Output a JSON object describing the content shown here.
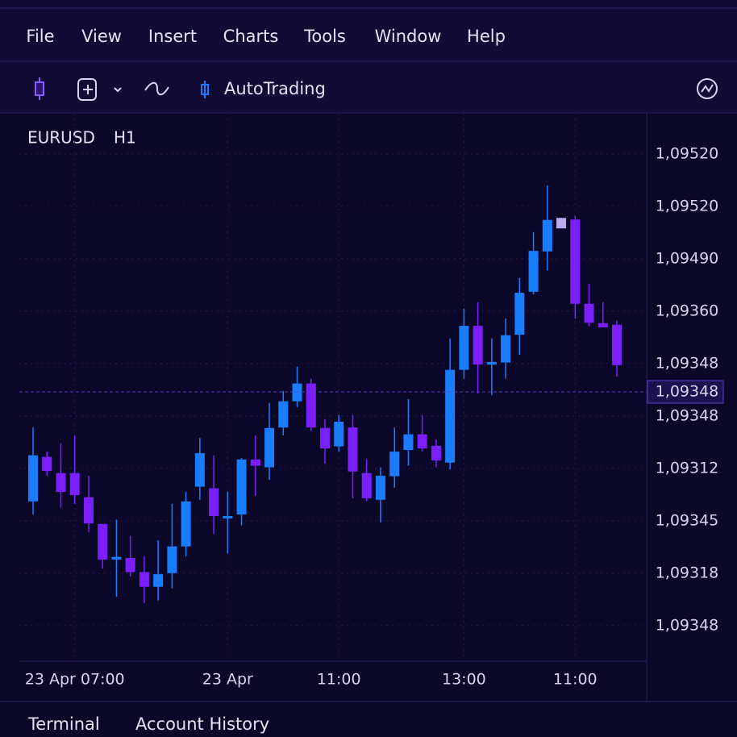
{
  "menu": [
    "File",
    "View",
    "Insert",
    "Charts",
    "Tools",
    "Window",
    "Help"
  ],
  "toolbar": {
    "autotrading": "AutoTrading"
  },
  "chart_data": {
    "type": "candlestick",
    "symbol": "EURUSD",
    "timeframe": "H1",
    "categories": [
      null,
      null,
      null,
      "23 Apr 07:00",
      null,
      null,
      null,
      null,
      null,
      null,
      null,
      null,
      null,
      null,
      "23 Apr",
      null,
      null,
      null,
      null,
      null,
      null,
      null,
      "11:00",
      null,
      null,
      null,
      null,
      null,
      null,
      null,
      null,
      "13:00",
      null,
      null,
      null,
      null,
      null,
      null,
      null,
      "11:00",
      null,
      null,
      null
    ],
    "open": [
      33.7,
      42.2,
      39.1,
      39.1,
      34.5,
      29.4,
      22.6,
      22.9,
      20.2,
      17.4,
      20.0,
      25.1,
      36.5,
      36.2,
      30.6,
      31.2,
      41.7,
      40.2,
      47.8,
      52.8,
      56.2,
      47.7,
      44.2,
      47.8,
      39.1,
      34.0,
      38.5,
      43.5,
      46.5,
      44.3,
      41.1,
      58.8,
      67.2,
      59.8,
      60.2,
      65.5,
      73.7,
      81.4,
      85.8,
      87.5,
      71.4,
      67.7,
      67.4
    ],
    "high": [
      47.8,
      43.2,
      44.8,
      46.3,
      38.6,
      29.4,
      30.2,
      27.1,
      23.2,
      26.3,
      33.2,
      35.5,
      45.8,
      42.5,
      35.5,
      42.0,
      46.3,
      52.5,
      54.8,
      59.4,
      57.1,
      49.4,
      50.2,
      50.2,
      41.7,
      40.2,
      47.8,
      53.2,
      50.2,
      45.5,
      64.8,
      70.5,
      71.7,
      64.8,
      68.6,
      76.3,
      85.1,
      94.0,
      87.8,
      88.2,
      75.2,
      71.7,
      68.2
    ],
    "low": [
      31.2,
      38.6,
      32.5,
      33.2,
      27.8,
      20.9,
      15.5,
      19.4,
      14.3,
      14.8,
      17.1,
      23.2,
      34.0,
      27.5,
      23.8,
      29.1,
      34.8,
      37.8,
      46.3,
      51.7,
      47.1,
      40.9,
      43.2,
      34.3,
      33.7,
      29.7,
      36.3,
      40.5,
      43.2,
      40.2,
      39.8,
      57.1,
      54.3,
      54.0,
      57.1,
      61.7,
      73.2,
      77.8,
      85.8,
      68.6,
      67.1,
      66.9,
      57.5
    ],
    "close": [
      42.5,
      39.5,
      35.5,
      34.9,
      29.5,
      22.6,
      23.1,
      20.2,
      17.4,
      19.8,
      25.1,
      33.7,
      42.9,
      30.9,
      30.9,
      41.7,
      40.5,
      47.7,
      52.8,
      56.2,
      47.8,
      43.8,
      48.9,
      39.4,
      34.3,
      38.6,
      43.2,
      46.5,
      43.8,
      41.5,
      58.8,
      67.2,
      59.8,
      60.3,
      65.4,
      73.5,
      81.5,
      87.4,
      87.8,
      71.4,
      67.8,
      66.9,
      59.7
    ],
    "colors": [
      "#1a7cff",
      "#7b1fff",
      "#7b1fff",
      "#7b1fff",
      "#7b1fff",
      "#7b1fff",
      "#1a7cff",
      "#7b1fff",
      "#7b1fff",
      "#1a7cff",
      "#1a7cff",
      "#1a7cff",
      "#1a7cff",
      "#7b1fff",
      "#1a7cff",
      "#1a7cff",
      "#7b1fff",
      "#1a7cff",
      "#1a7cff",
      "#1a7cff",
      "#7b1fff",
      "#7b1fff",
      "#1a7cff",
      "#7b1fff",
      "#7b1fff",
      "#1a7cff",
      "#1a7cff",
      "#1a7cff",
      "#7b1fff",
      "#7b1fff",
      "#1a7cff",
      "#1a7cff",
      "#7b1fff",
      "#1a7cff",
      "#1a7cff",
      "#1a7cff",
      "#1a7cff",
      "#1a7cff",
      "#b9a9f0",
      "#7b1fff",
      "#7b1fff",
      "#7b1fff",
      "#7b1fff"
    ],
    "ylim": [
      3.2,
      106.3
    ],
    "yticks": [
      {
        "value": 100,
        "label": "1,09520"
      },
      {
        "value": 90,
        "label": "1,09520"
      },
      {
        "value": 80,
        "label": "1,09490"
      },
      {
        "value": 70,
        "label": "1,09360"
      },
      {
        "value": 60,
        "label": "1,09348"
      },
      {
        "value": 50,
        "label": "1,09348"
      },
      {
        "value": 40,
        "label": "1,09312"
      },
      {
        "value": 30,
        "label": "1,09345"
      },
      {
        "value": 20,
        "label": "1,09318"
      },
      {
        "value": 10,
        "label": "1,09348"
      }
    ],
    "current_price": {
      "value": 54.6,
      "label": "1,09348"
    },
    "grid": true
  },
  "tabs": [
    "Terminal",
    "Account History"
  ]
}
